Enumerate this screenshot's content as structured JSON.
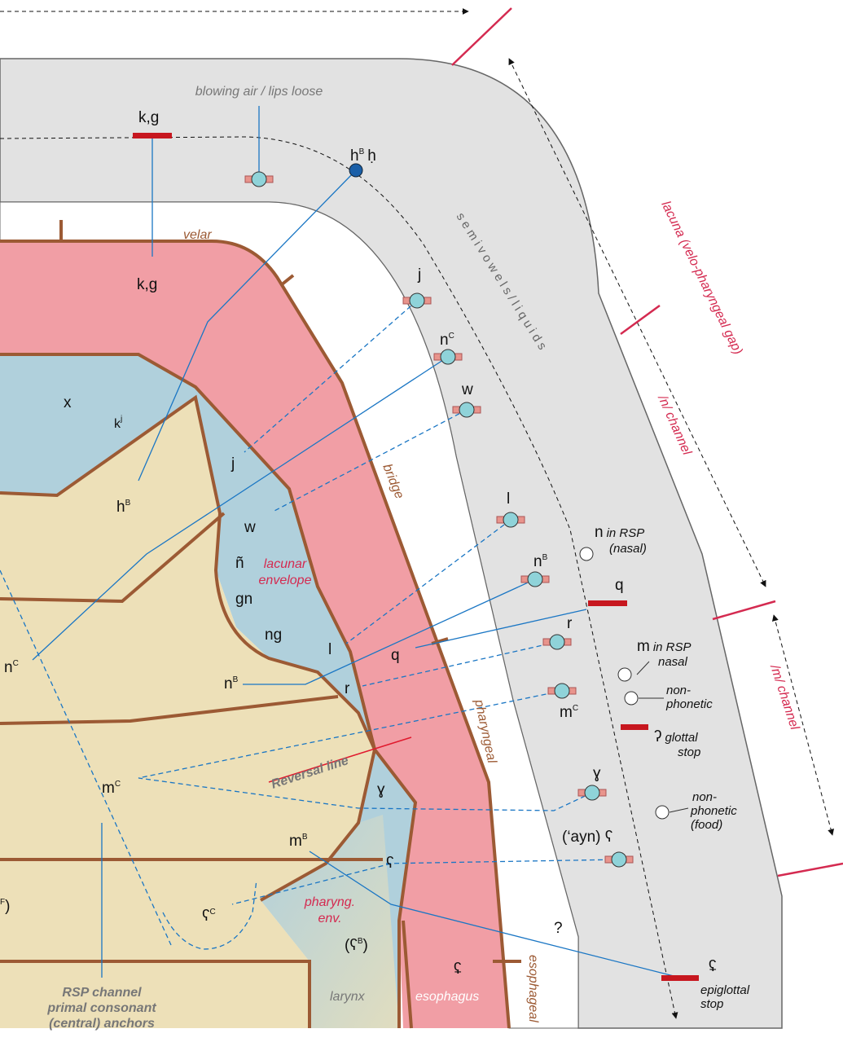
{
  "labels": {
    "velar": "velar",
    "bridge": "bridge",
    "pharyngeal": "pharyngeal",
    "esophageal": "esophageal",
    "larynx": "larynx",
    "esophagus": "esophagus",
    "lacunar_envelope": [
      "lacunar",
      "envelope"
    ],
    "pharyngeal_envelope": [
      "pharyng.",
      "env."
    ],
    "lacuna": "lacuna (velo-pharyngeal gap)",
    "n_channel": "/n/ channel",
    "m_channel": "/m/ channel",
    "semivowels": "s e m i v o w e l s / l i q u i d s",
    "reversal": "Reversal line",
    "blowing": "blowing air / lips loose",
    "rsp": [
      "RSP channel",
      "primal consonant",
      "(central) anchors"
    ],
    "question": "?"
  },
  "outer": {
    "kg_top": "k,g",
    "kg_low": "k,g",
    "h": {
      "text": "h",
      "sup": "B"
    },
    "h_dot": "ḥ",
    "j": "j",
    "nc": {
      "text": "n",
      "sup": "C"
    },
    "w": "w",
    "l": "l",
    "nb": {
      "text": "n",
      "sup": "B"
    },
    "r": "r",
    "mc": {
      "text": "m",
      "sup": "C"
    },
    "gamma": "ɣ",
    "ayn": "(‘ayn) ʕ"
  },
  "rsp_points": {
    "n": [
      "n",
      "in RSP",
      "(nasal)"
    ],
    "q": "q",
    "m": [
      "m",
      "in RSP",
      "nasal"
    ],
    "nonphon": [
      "non-",
      "phonetic"
    ],
    "glottal": [
      "ʔ",
      "glottal",
      "stop"
    ],
    "food": [
      "non-",
      "phonetic",
      "(food)"
    ],
    "epiglottal": [
      "ʢ",
      "epiglottal",
      "stop"
    ]
  },
  "inner": {
    "x": "x",
    "kj": {
      "text": "k",
      "sup": "j"
    },
    "j": "j",
    "hb": {
      "text": "h",
      "sup": "B"
    },
    "w": "w",
    "nn": "ñ",
    "gn": "gn",
    "ng": "ng",
    "l": "l",
    "q": "q",
    "nc": {
      "text": "n",
      "sup": "C"
    },
    "nb": {
      "text": "n",
      "sup": "B"
    },
    "r": "r",
    "mc": {
      "text": "m",
      "sup": "C"
    },
    "gamma": "ɣ",
    "mb": {
      "text": "m",
      "sup": "B"
    },
    "ayn": "ʕ",
    "aync": {
      "text": "ʕ",
      "sup": "C"
    },
    "aynb": {
      "text": "(ʕ",
      "sup": "B",
      "close": ")"
    },
    "f": {
      "sup": "F",
      "close": ")"
    },
    "epi": "ʢ"
  }
}
